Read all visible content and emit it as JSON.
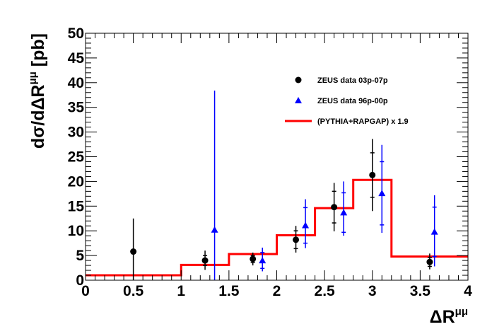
{
  "chart_data": {
    "type": "scatter",
    "x_title": {
      "main": "ΔR",
      "sup": "μμ"
    },
    "y_title": {
      "prefix": "dσ/dΔR",
      "sup": "μμ",
      "suffix": " [pb]"
    },
    "xlim": [
      0,
      4
    ],
    "ylim": [
      0,
      50
    ],
    "x_major_ticks": [
      0,
      0.5,
      1,
      1.5,
      2,
      2.5,
      3,
      3.5,
      4
    ],
    "x_tick_labels": [
      "0",
      "0.5",
      "1",
      "1.5",
      "2",
      "2.5",
      "3",
      "3.5",
      "4"
    ],
    "y_major_ticks": [
      0,
      5,
      10,
      15,
      20,
      25,
      30,
      35,
      40,
      45,
      50
    ],
    "y_tick_labels": [
      "0",
      "5",
      "10",
      "15",
      "20",
      "25",
      "30",
      "35",
      "40",
      "45",
      "50"
    ],
    "grid": false,
    "legend_position": "top-right",
    "series": [
      {
        "name": "ZEUS data 03p-07p",
        "marker": "circle",
        "color": "#000000",
        "points": [
          {
            "x": 0.5,
            "y": 5.8,
            "err_lo": 5.8,
            "err_hi": 6.7,
            "inner": 0
          },
          {
            "x": 1.25,
            "y": 4.0,
            "err_lo": 1.9,
            "err_hi": 2.0,
            "inner": 1.0
          },
          {
            "x": 1.75,
            "y": 4.3,
            "err_lo": 1.3,
            "err_hi": 1.3,
            "inner": 0.7
          },
          {
            "x": 2.2,
            "y": 8.2,
            "err_lo": 2.6,
            "err_hi": 2.8,
            "inner": 1.8
          },
          {
            "x": 2.6,
            "y": 14.8,
            "err_lo": 4.9,
            "err_hi": 4.9,
            "inner": 3.2
          },
          {
            "x": 3.0,
            "y": 21.3,
            "err_lo": 7.3,
            "err_hi": 7.3,
            "inner": 4.5
          },
          {
            "x": 3.6,
            "y": 3.7,
            "err_lo": 1.5,
            "err_hi": 1.7,
            "inner": 0.9
          }
        ]
      },
      {
        "name": "ZEUS data 96p-00p",
        "marker": "triangle",
        "color": "#0000ff",
        "points": [
          {
            "x": 1.35,
            "y": 10.2,
            "err_lo": 10.2,
            "err_hi": 28.2,
            "inner": 0
          },
          {
            "x": 1.85,
            "y": 4.0,
            "err_lo": 2.2,
            "err_hi": 2.6,
            "inner": 1.6
          },
          {
            "x": 2.3,
            "y": 11.1,
            "err_lo": 4.6,
            "err_hi": 5.3,
            "inner": 3.6
          },
          {
            "x": 2.7,
            "y": 13.7,
            "err_lo": 4.7,
            "err_hi": 6.3,
            "inner": 4.0
          },
          {
            "x": 3.1,
            "y": 17.6,
            "err_lo": 8.0,
            "err_hi": 9.8,
            "inner": 6.4
          },
          {
            "x": 3.65,
            "y": 9.8,
            "err_lo": 7.0,
            "err_hi": 7.4,
            "inner": 5.0
          }
        ]
      },
      {
        "name": "(PYTHIA+RAPGAP) x 1.9",
        "type": "step",
        "color": "#ff0000",
        "bins": [
          {
            "x0": 0,
            "x1": 1,
            "y": 1.0
          },
          {
            "x0": 1,
            "x1": 1.5,
            "y": 3.1
          },
          {
            "x0": 1.5,
            "x1": 2,
            "y": 5.3
          },
          {
            "x0": 2,
            "x1": 2.4,
            "y": 9.1
          },
          {
            "x0": 2.4,
            "x1": 2.8,
            "y": 14.6
          },
          {
            "x0": 2.8,
            "x1": 3.2,
            "y": 20.3
          },
          {
            "x0": 3.2,
            "x1": 4,
            "y": 4.8
          }
        ]
      }
    ]
  }
}
